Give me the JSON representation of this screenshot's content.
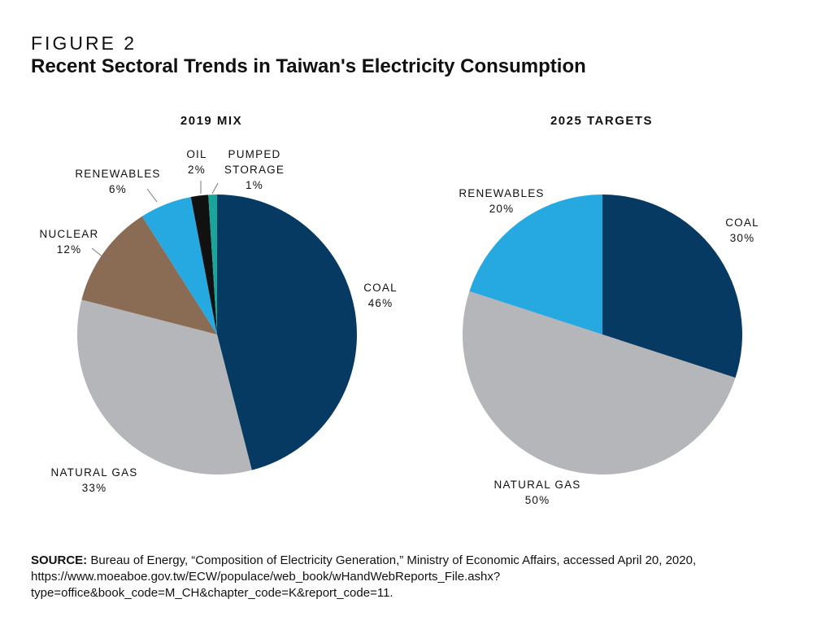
{
  "figure": {
    "label": "FIGURE 2",
    "title": "Recent Sectoral Trends in Taiwan's Electricity Consumption"
  },
  "source": {
    "label": "SOURCE:",
    "text": "Bureau of Energy, “Composition of Electricity Generation,” Ministry of Economic Affairs, accessed April 20, 2020, https://www.moeaboe.gov.tw/ECW/populace/web_book/wHandWebReports_File.ashx?type=office&book_code=M_CH&chapter_code=K&report_code=11."
  },
  "colors": {
    "coal": "#063a62",
    "natural_gas": "#b5b6ba",
    "nuclear": "#8a6b53",
    "renewables": "#26a8e0",
    "oil": "#111111",
    "pumped_storage": "#1aa59a"
  },
  "chart_data": [
    {
      "type": "pie",
      "title": "2019 MIX",
      "slices": [
        {
          "name": "COAL",
          "value": 46,
          "value_label": "46%",
          "color": "#063a62"
        },
        {
          "name": "NATURAL GAS",
          "value": 33,
          "value_label": "33%",
          "color": "#b5b6ba"
        },
        {
          "name": "NUCLEAR",
          "value": 12,
          "value_label": "12%",
          "color": "#8a6b53"
        },
        {
          "name": "RENEWABLES",
          "value": 6,
          "value_label": "6%",
          "color": "#26a8e0"
        },
        {
          "name": "OIL",
          "value": 2,
          "value_label": "2%",
          "color": "#111111"
        },
        {
          "name": "PUMPED STORAGE",
          "value": 1,
          "value_label": "1%",
          "color": "#1aa59a"
        }
      ]
    },
    {
      "type": "pie",
      "title": "2025 TARGETS",
      "slices": [
        {
          "name": "COAL",
          "value": 30,
          "value_label": "30%",
          "color": "#063a62"
        },
        {
          "name": "NATURAL GAS",
          "value": 50,
          "value_label": "50%",
          "color": "#b5b6ba"
        },
        {
          "name": "RENEWABLES",
          "value": 20,
          "value_label": "20%",
          "color": "#26a8e0"
        }
      ]
    }
  ]
}
